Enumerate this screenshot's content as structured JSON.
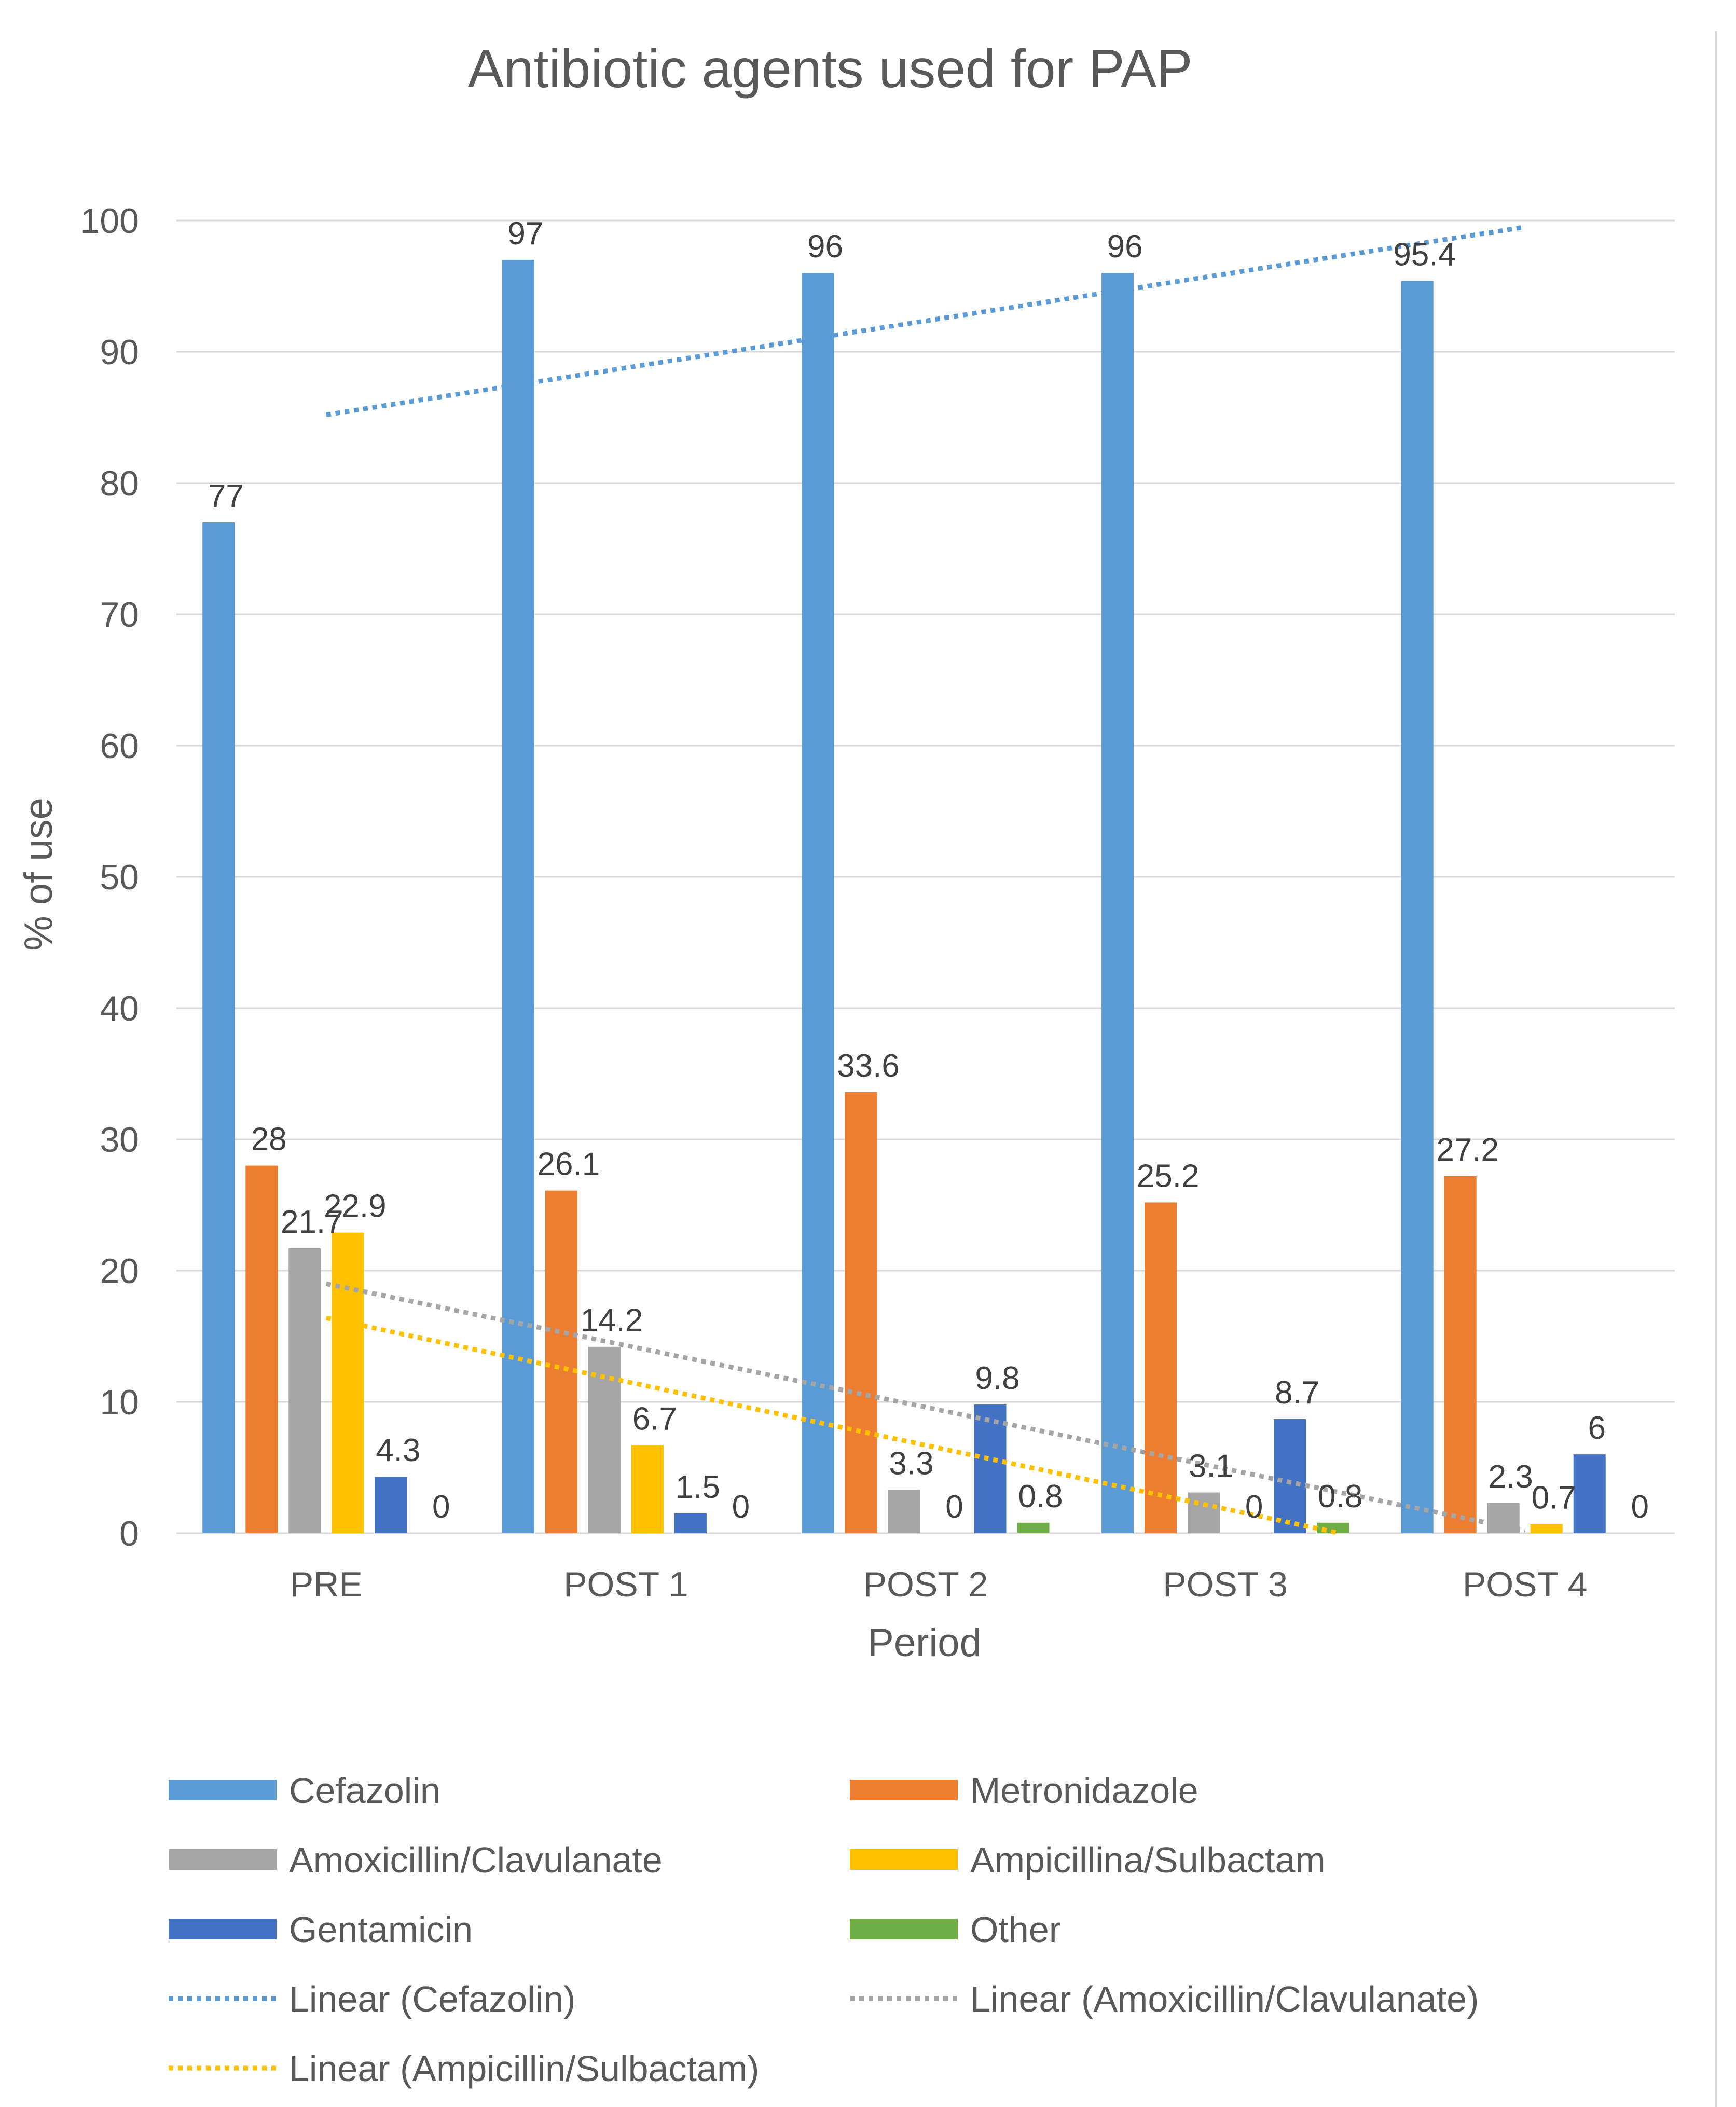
{
  "chart_data": {
    "type": "bar",
    "title": "Antibiotic agents used for PAP",
    "xlabel": "Period",
    "ylabel": "% of use",
    "ylim": [
      0,
      100
    ],
    "yticks": [
      "0",
      "10",
      "20",
      "30",
      "40",
      "50",
      "60",
      "70",
      "80",
      "90",
      "100"
    ],
    "categories": [
      "PRE",
      "POST 1",
      "POST 2",
      "POST 3",
      "POST 4"
    ],
    "series": [
      {
        "name": "Cefazolin",
        "color": "#5b9bd5",
        "values": [
          77,
          97,
          96,
          96,
          95.4
        ],
        "labels": [
          "77",
          "97",
          "96",
          "96",
          "95.4"
        ]
      },
      {
        "name": "Metronidazole",
        "color": "#ed7d31",
        "values": [
          28,
          26.1,
          33.6,
          25.2,
          27.2
        ],
        "labels": [
          "28",
          "26.1",
          "33.6",
          "25.2",
          "27.2"
        ]
      },
      {
        "name": "Amoxicillin/Clavulanate",
        "color": "#a5a5a5",
        "values": [
          21.7,
          14.2,
          3.3,
          3.1,
          2.3
        ],
        "labels": [
          "21.7",
          "14.2",
          "3.3",
          "3.1",
          "2.3"
        ]
      },
      {
        "name": "Ampicillina/Sulbactam",
        "color": "#ffc000",
        "values": [
          22.9,
          6.7,
          0,
          0,
          0.7
        ],
        "labels": [
          "22.9",
          "6.7",
          "0",
          "0",
          "0.7"
        ]
      },
      {
        "name": "Gentamicin",
        "color": "#4472c4",
        "values": [
          4.3,
          1.5,
          9.8,
          8.7,
          6
        ],
        "labels": [
          "4.3",
          "1.5",
          "9.8",
          "8.7",
          "6"
        ]
      },
      {
        "name": "Other",
        "color": "#70ad47",
        "values": [
          0,
          0,
          0.8,
          0.8,
          0
        ],
        "labels": [
          "0",
          "0",
          "0.8",
          "0.8",
          "0"
        ]
      }
    ],
    "trendlines": [
      {
        "name": "Linear (Cefazolin)",
        "color": "#5b9bd5",
        "start": 85.2,
        "end": 99.5
      },
      {
        "name": "Linear (Amoxicillin/Clavulanate)",
        "color": "#a5a5a5",
        "start": 19.0,
        "end": 0.2
      },
      {
        "name": "Linear (Ampicillin/Sulbactam)",
        "color": "#ffc000",
        "start": 16.4,
        "end": -3.0
      }
    ],
    "legend": [
      {
        "label": "Cefazolin",
        "kind": "bar",
        "color": "#5b9bd5"
      },
      {
        "label": "Metronidazole",
        "kind": "bar",
        "color": "#ed7d31"
      },
      {
        "label": "Amoxicillin/Clavulanate",
        "kind": "bar",
        "color": "#a5a5a5"
      },
      {
        "label": "Ampicillina/Sulbactam",
        "kind": "bar",
        "color": "#ffc000"
      },
      {
        "label": "Gentamicin",
        "kind": "bar",
        "color": "#4472c4"
      },
      {
        "label": "Other",
        "kind": "bar",
        "color": "#70ad47"
      },
      {
        "label": "Linear (Cefazolin)",
        "kind": "line",
        "color": "#5b9bd5"
      },
      {
        "label": "Linear (Amoxicillin/Clavulanate)",
        "kind": "line",
        "color": "#a5a5a5"
      },
      {
        "label": "Linear (Ampicillin/Sulbactam)",
        "kind": "line",
        "color": "#ffc000"
      }
    ],
    "grid": true,
    "legend_position": "bottom"
  }
}
